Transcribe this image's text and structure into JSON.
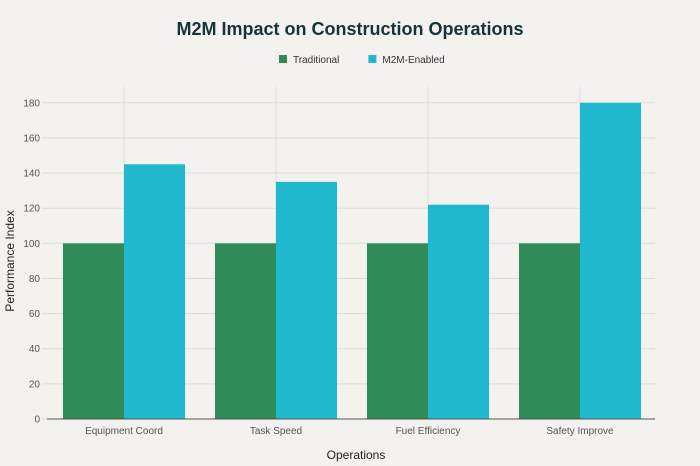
{
  "chart_data": {
    "type": "bar",
    "title": "M2M Impact on Construction Operations",
    "xlabel": "Operations",
    "ylabel": "Performance Index",
    "categories": [
      "Equipment Coord",
      "Task Speed",
      "Fuel Efficiency",
      "Safety Improve"
    ],
    "series": [
      {
        "name": "Traditional",
        "color": "#2e8b57",
        "values": [
          100,
          100,
          100,
          100
        ]
      },
      {
        "name": "M2M-Enabled",
        "color": "#1fb8cd",
        "values": [
          145,
          135,
          122,
          180
        ]
      }
    ],
    "ylim": [
      0,
      189
    ],
    "yticks": [
      0,
      20,
      40,
      60,
      80,
      100,
      120,
      140,
      160,
      180
    ],
    "grid": true,
    "legend_position": "top-center"
  }
}
